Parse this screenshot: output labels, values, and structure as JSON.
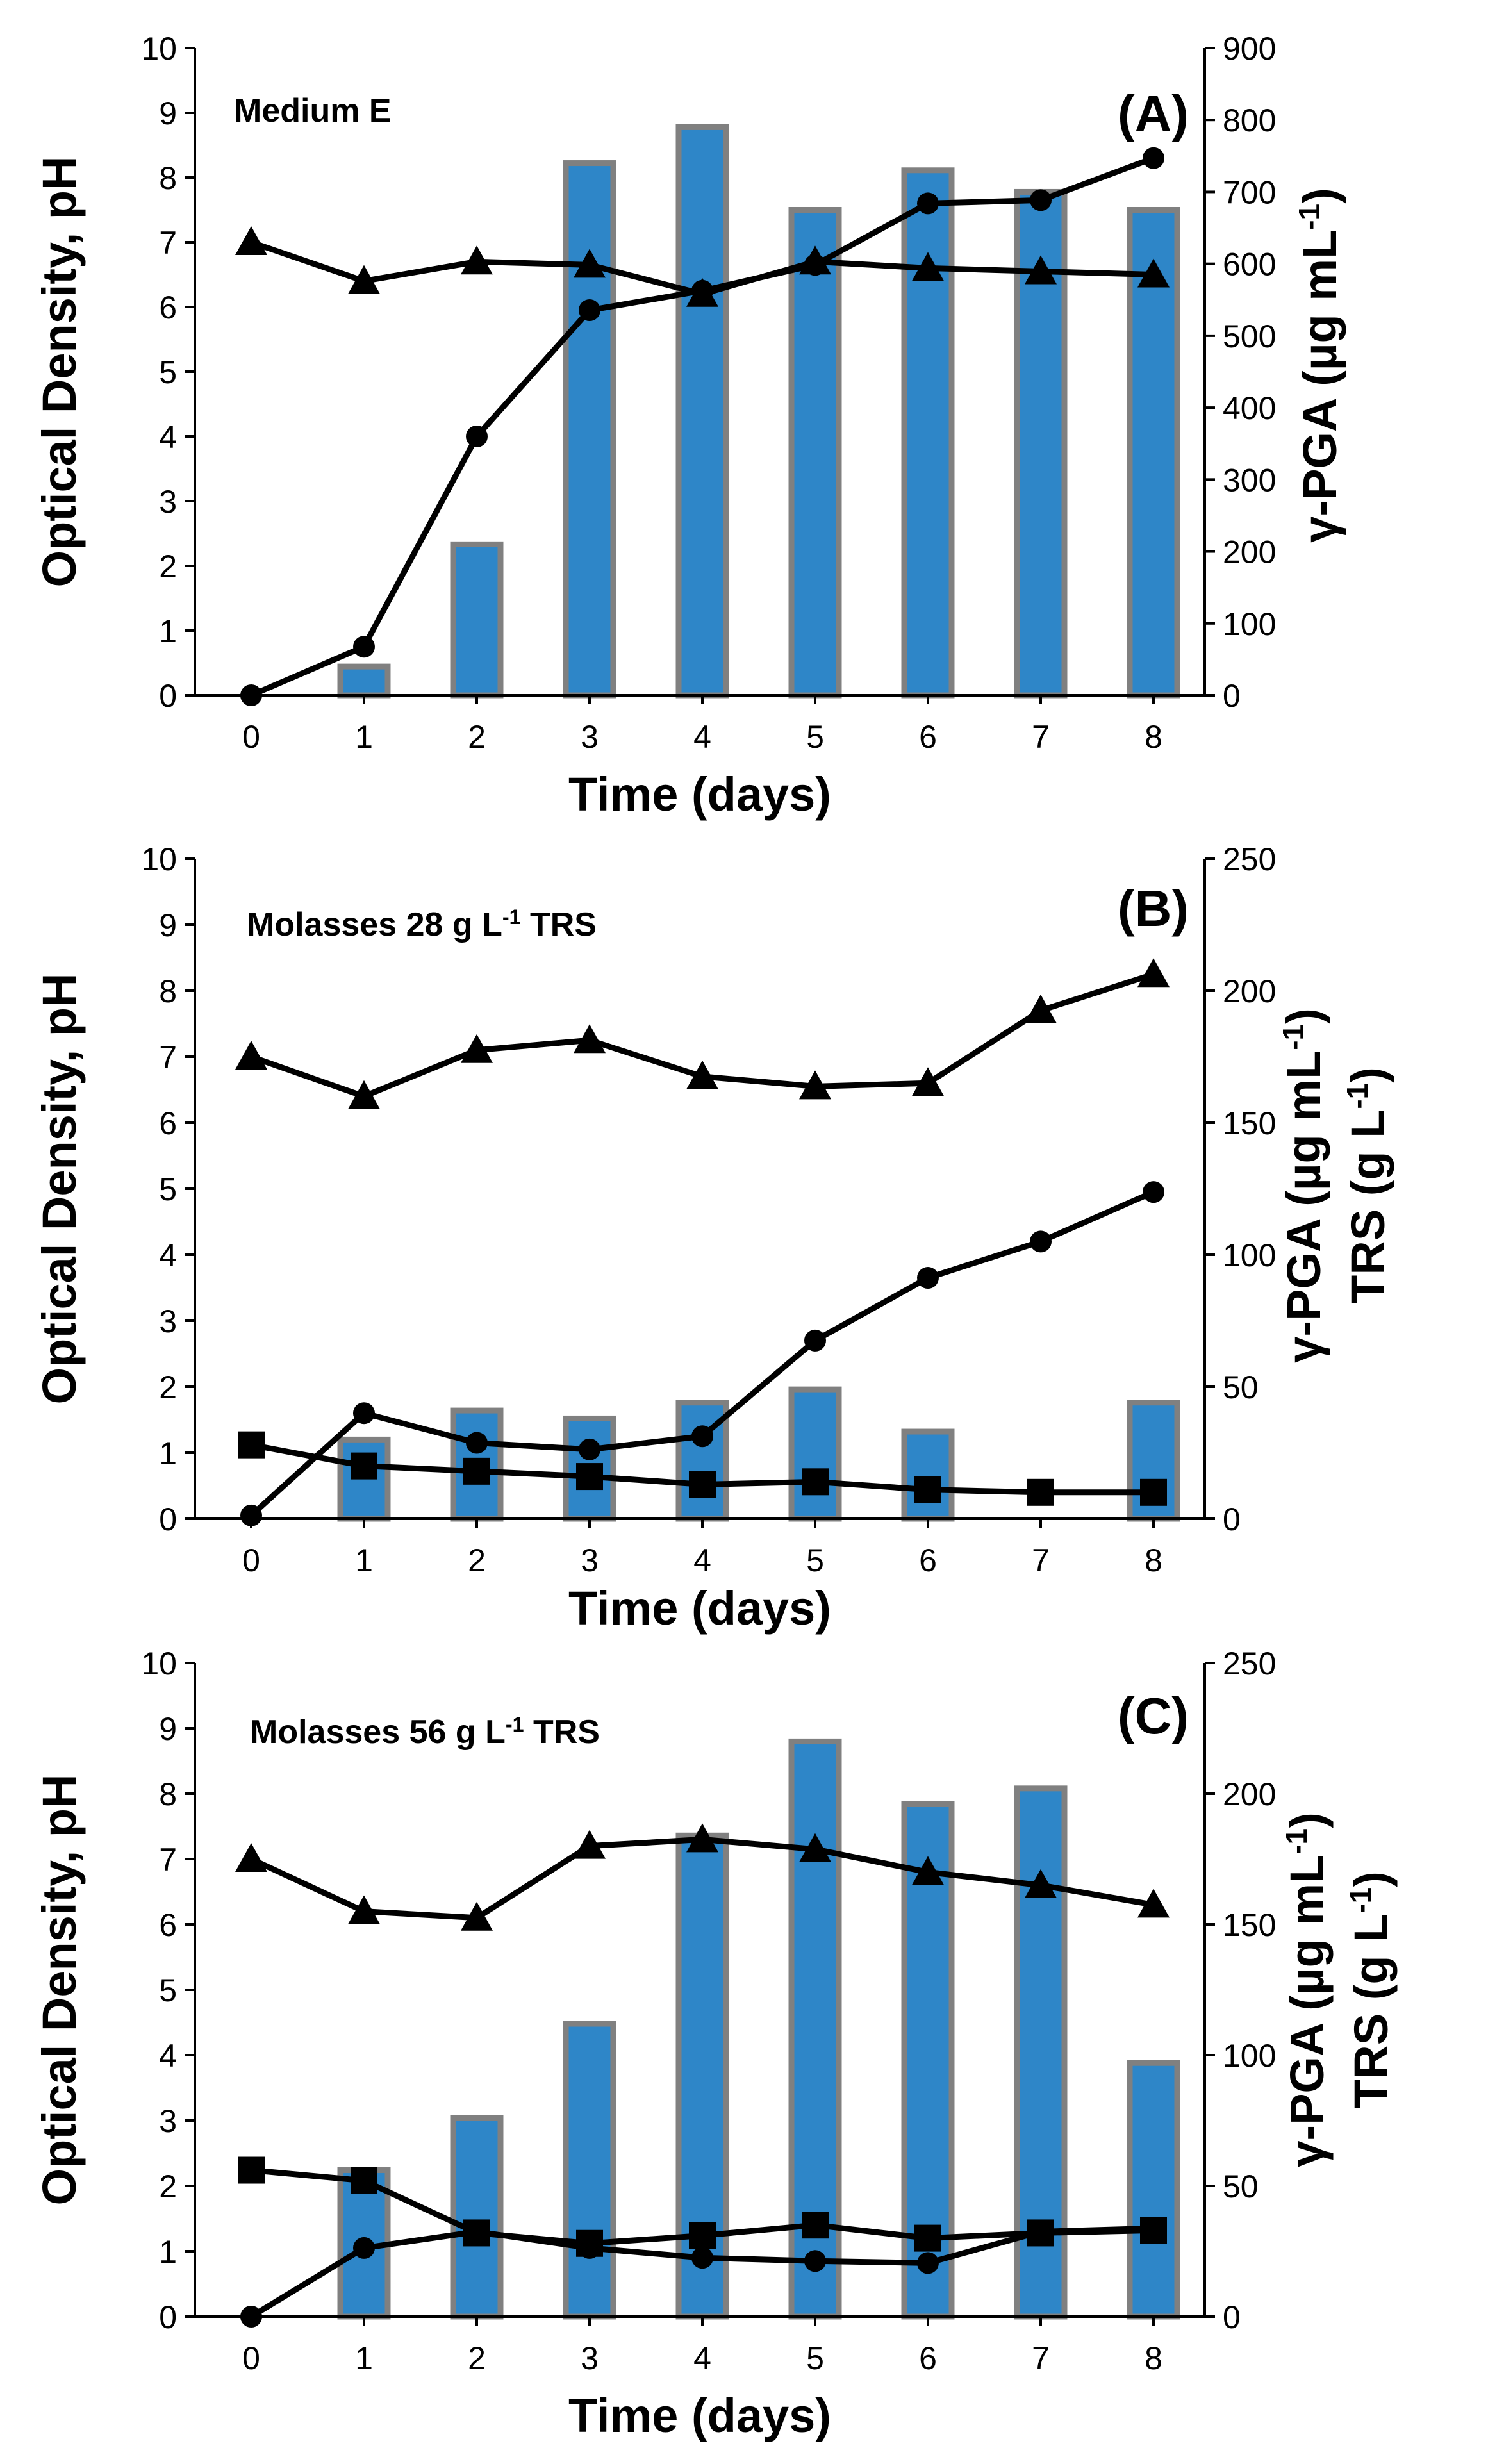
{
  "chart_data": [
    {
      "type": "bar+line",
      "panel_label": "(A)",
      "annotation": {
        "base": "Medium E",
        "superscript": "",
        "tail": ""
      },
      "xlabel": "Time (days)",
      "ylabel_left": "Optical Density, pH",
      "ylabel_right": [
        {
          "base": "γ-PGA (µg mL",
          "superscript": "-1",
          "tail": ")"
        }
      ],
      "x": [
        0,
        1,
        2,
        3,
        4,
        5,
        6,
        7,
        8
      ],
      "ylim_left": [
        0,
        10
      ],
      "ylim_right": [
        0,
        900
      ],
      "yticks_left": [
        0,
        1,
        2,
        3,
        4,
        5,
        6,
        7,
        8,
        9,
        10
      ],
      "yticks_right": [
        0,
        100,
        200,
        300,
        400,
        500,
        600,
        700,
        800,
        900
      ],
      "bars": {
        "name": "γ-PGA",
        "axis": "right",
        "color": "#2E86C8",
        "edge": "#808080",
        "values": [
          null,
          40,
          210,
          740,
          790,
          675,
          730,
          700,
          675
        ]
      },
      "lines": [
        {
          "name": "pH",
          "marker": "triangle",
          "axis": "left",
          "values": [
            7.0,
            6.4,
            6.7,
            6.65,
            6.2,
            6.7,
            6.6,
            6.55,
            6.5
          ]
        },
        {
          "name": "Optical Density",
          "marker": "circle",
          "axis": "left",
          "values": [
            0.0,
            0.75,
            4.0,
            5.95,
            6.25,
            6.65,
            7.6,
            7.65,
            8.3
          ]
        }
      ]
    },
    {
      "type": "bar+line",
      "panel_label": "(B)",
      "annotation": {
        "base": "Molasses 28 g L",
        "superscript": "-1",
        "tail": " TRS"
      },
      "xlabel": "Time (days)",
      "ylabel_left": "Optical Density, pH",
      "ylabel_right": [
        {
          "base": "γ-PGA (µg mL",
          "superscript": "-1",
          "tail": ")"
        },
        {
          "base": "TRS (g L",
          "superscript": "-1",
          "tail": ")"
        }
      ],
      "x": [
        0,
        1,
        2,
        3,
        4,
        5,
        6,
        7,
        8
      ],
      "ylim_left": [
        0,
        10
      ],
      "ylim_right": [
        0,
        250
      ],
      "yticks_left": [
        0,
        1,
        2,
        3,
        4,
        5,
        6,
        7,
        8,
        9,
        10
      ],
      "yticks_right": [
        0,
        50,
        100,
        150,
        200,
        250
      ],
      "bars": {
        "name": "γ-PGA",
        "axis": "right",
        "color": "#2E86C8",
        "edge": "#808080",
        "values": [
          null,
          30,
          41,
          38,
          44,
          49,
          33,
          null,
          44
        ]
      },
      "lines": [
        {
          "name": "pH",
          "marker": "triangle",
          "axis": "left",
          "values": [
            7.0,
            6.4,
            7.1,
            7.25,
            6.7,
            6.55,
            6.6,
            7.7,
            8.25
          ]
        },
        {
          "name": "Optical Density",
          "marker": "circle",
          "axis": "left",
          "values": [
            0.05,
            1.6,
            1.15,
            1.05,
            1.25,
            2.7,
            3.65,
            4.2,
            4.95
          ]
        },
        {
          "name": "TRS",
          "marker": "square",
          "axis": "right",
          "values": [
            28,
            20,
            18,
            16,
            13,
            14,
            11,
            10,
            10
          ]
        }
      ]
    },
    {
      "type": "bar+line",
      "panel_label": "(C)",
      "annotation": {
        "base": "Molasses 56 g L",
        "superscript": "-1",
        "tail": " TRS"
      },
      "xlabel": "Time (days)",
      "ylabel_left": "Optical Density, pH",
      "ylabel_right": [
        {
          "base": "γ-PGA (µg mL",
          "superscript": "-1",
          "tail": ")"
        },
        {
          "base": "TRS (g L",
          "superscript": "-1",
          "tail": ")"
        }
      ],
      "x": [
        0,
        1,
        2,
        3,
        4,
        5,
        6,
        7,
        8
      ],
      "ylim_left": [
        0,
        10
      ],
      "ylim_right": [
        0,
        250
      ],
      "yticks_left": [
        0,
        1,
        2,
        3,
        4,
        5,
        6,
        7,
        8,
        9,
        10
      ],
      "yticks_right": [
        0,
        50,
        100,
        150,
        200,
        250
      ],
      "bars": {
        "name": "γ-PGA",
        "axis": "right",
        "color": "#2E86C8",
        "edge": "#808080",
        "values": [
          null,
          56,
          76,
          112,
          184,
          220,
          196,
          202,
          97
        ]
      },
      "lines": [
        {
          "name": "pH",
          "marker": "triangle",
          "axis": "left",
          "values": [
            7.0,
            6.2,
            6.1,
            7.2,
            7.3,
            7.15,
            6.8,
            6.6,
            6.3
          ]
        },
        {
          "name": "Optical Density",
          "marker": "circle",
          "axis": "left",
          "values": [
            0.0,
            1.05,
            1.3,
            1.05,
            0.9,
            0.85,
            0.82,
            1.3,
            1.35
          ]
        },
        {
          "name": "TRS",
          "marker": "square",
          "axis": "right",
          "values": [
            56,
            52,
            32,
            28,
            31,
            35,
            30,
            32,
            33
          ]
        }
      ]
    }
  ]
}
